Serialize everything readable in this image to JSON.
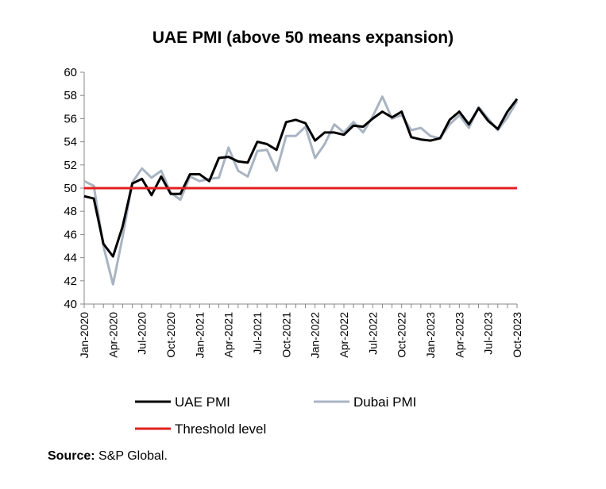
{
  "chart_data": {
    "type": "line",
    "title": "UAE PMI (above 50 means expansion)",
    "xlabel": "",
    "ylabel": "",
    "ylim": [
      40,
      60
    ],
    "yticks": [
      40,
      42,
      44,
      46,
      48,
      50,
      52,
      54,
      56,
      58,
      60
    ],
    "x": [
      "Jan-2020",
      "Feb-2020",
      "Mar-2020",
      "Apr-2020",
      "May-2020",
      "Jun-2020",
      "Jul-2020",
      "Aug-2020",
      "Sep-2020",
      "Oct-2020",
      "Nov-2020",
      "Dec-2020",
      "Jan-2021",
      "Feb-2021",
      "Mar-2021",
      "Apr-2021",
      "May-2021",
      "Jun-2021",
      "Jul-2021",
      "Aug-2021",
      "Sep-2021",
      "Oct-2021",
      "Nov-2021",
      "Dec-2021",
      "Jan-2022",
      "Feb-2022",
      "Mar-2022",
      "Apr-2022",
      "May-2022",
      "Jun-2022",
      "Jul-2022",
      "Aug-2022",
      "Sep-2022",
      "Oct-2022",
      "Nov-2022",
      "Dec-2022",
      "Jan-2023",
      "Feb-2023",
      "Mar-2023",
      "Apr-2023",
      "May-2023",
      "Jun-2023",
      "Jul-2023",
      "Aug-2023",
      "Sep-2023",
      "Oct-2023"
    ],
    "xtick_labels": [
      "Jan-2020",
      "Apr-2020",
      "Jul-2020",
      "Oct-2020",
      "Jan-2021",
      "Apr-2021",
      "Jul-2021",
      "Oct-2021",
      "Jan-2022",
      "Apr-2022",
      "Jul-2022",
      "Oct-2022",
      "Jan-2023",
      "Apr-2023",
      "Jul-2023",
      "Oct-2023"
    ],
    "series": [
      {
        "name": "UAE PMI",
        "color": "#000000",
        "values": [
          49.3,
          49.1,
          45.2,
          44.1,
          46.7,
          50.4,
          50.8,
          49.4,
          51.0,
          49.5,
          49.5,
          51.2,
          51.2,
          50.6,
          52.6,
          52.7,
          52.3,
          52.2,
          54.0,
          53.8,
          53.3,
          55.7,
          55.9,
          55.6,
          54.1,
          54.8,
          54.8,
          54.6,
          55.4,
          55.3,
          56.0,
          56.6,
          56.1,
          56.6,
          54.4,
          54.2,
          54.1,
          54.3,
          55.9,
          56.6,
          55.5,
          56.9,
          55.8,
          55.1,
          56.6,
          57.7
        ]
      },
      {
        "name": "Dubai PMI",
        "color": "#a9b4c2",
        "values": [
          50.6,
          50.2,
          45.0,
          41.7,
          45.8,
          50.5,
          51.7,
          50.9,
          51.5,
          49.6,
          49.0,
          51.0,
          50.6,
          50.8,
          50.9,
          53.5,
          51.5,
          51.0,
          53.2,
          53.3,
          51.5,
          54.5,
          54.5,
          55.3,
          52.6,
          53.8,
          55.5,
          54.8,
          55.7,
          54.8,
          56.2,
          57.9,
          56.0,
          56.3,
          55.0,
          55.2,
          54.5,
          54.3,
          55.5,
          56.3,
          55.2,
          57.0,
          56.0,
          55.0,
          56.1,
          57.5
        ]
      },
      {
        "name": "Threshold level",
        "color": "#e02020",
        "values": [
          50,
          50,
          50,
          50,
          50,
          50,
          50,
          50,
          50,
          50,
          50,
          50,
          50,
          50,
          50,
          50,
          50,
          50,
          50,
          50,
          50,
          50,
          50,
          50,
          50,
          50,
          50,
          50,
          50,
          50,
          50,
          50,
          50,
          50,
          50,
          50,
          50,
          50,
          50,
          50,
          50,
          50,
          50,
          50,
          50,
          50
        ]
      }
    ],
    "legend": {
      "placement": "bottom",
      "entries": [
        "UAE PMI",
        "Dubai PMI",
        "Threshold level"
      ]
    },
    "grid": false
  },
  "source": {
    "label": "Source:",
    "text": "S&P Global."
  }
}
